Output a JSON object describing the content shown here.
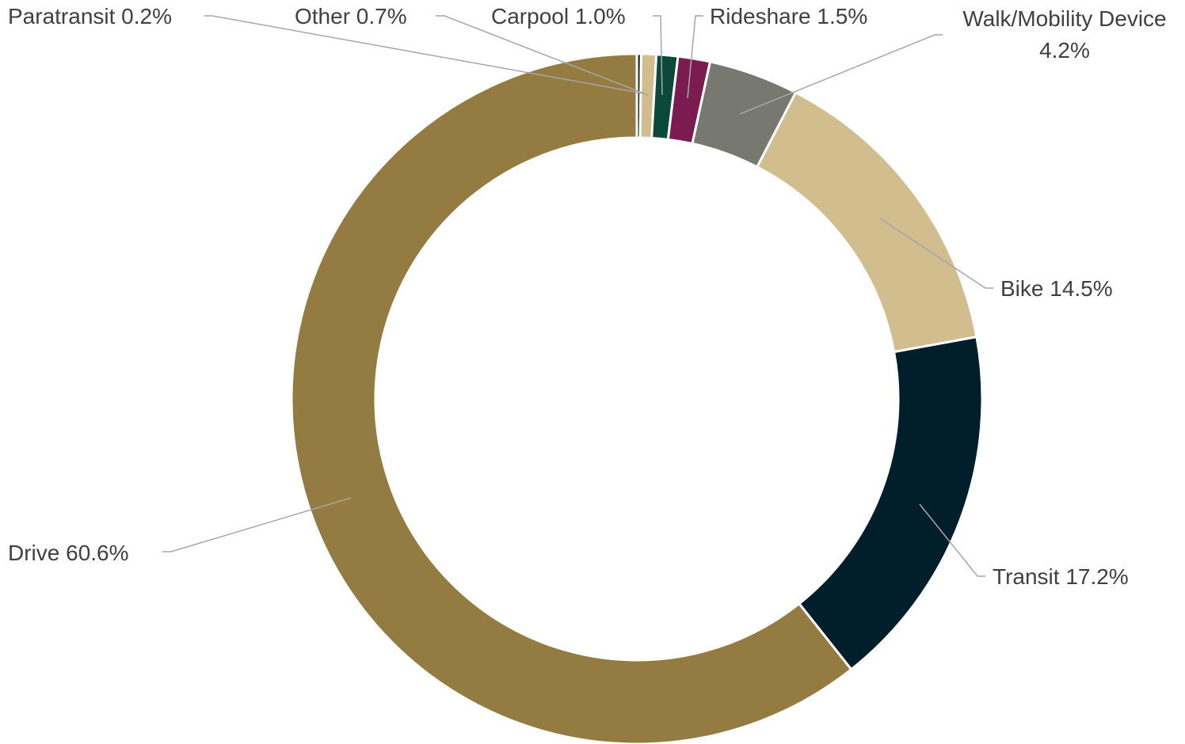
{
  "chart_data": {
    "type": "donut",
    "title": "",
    "categories": [
      "Paratransit",
      "Other",
      "Carpool",
      "Rideshare",
      "Walk/Mobility Device",
      "Bike",
      "Transit",
      "Drive"
    ],
    "values": [
      0.2,
      0.7,
      1.0,
      1.5,
      4.2,
      14.5,
      17.2,
      60.6
    ],
    "units": "%",
    "colors": [
      "#1f2d2a",
      "#d1bd8e",
      "#0b4a3a",
      "#7b1c50",
      "#77786f",
      "#d1bd8e",
      "#011e2b",
      "#947b41"
    ],
    "labels": [
      {
        "lines": [
          "Paratransit 0.2%"
        ]
      },
      {
        "lines": [
          "Other  0.7%"
        ]
      },
      {
        "lines": [
          "Carpool 1.0%"
        ]
      },
      {
        "lines": [
          "Rideshare 1.5%"
        ]
      },
      {
        "lines": [
          "Walk/Mobility Device",
          "4.2%"
        ]
      },
      {
        "lines": [
          "Bike 14.5%"
        ]
      },
      {
        "lines": [
          "Transit 17.2%"
        ]
      },
      {
        "lines": [
          "Drive  60.6%"
        ]
      }
    ],
    "legend": "none",
    "label_style": "outside labels with leader lines"
  }
}
